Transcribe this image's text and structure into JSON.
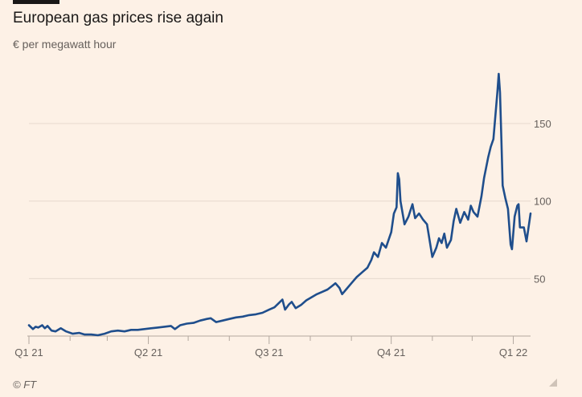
{
  "title": "European gas prices rise again",
  "subtitle": "€ per megawatt hour",
  "source": "© FT",
  "chart_data": {
    "type": "line",
    "title": "European gas prices rise again",
    "ylabel": "€ per megawatt hour",
    "xlabel": "",
    "ylim": [
      13,
      180
    ],
    "y_ticks": [
      50,
      100,
      150
    ],
    "x_ticks": [
      "Q1 21",
      "Q2 21",
      "Q3 21",
      "Q4 21",
      "Q1 22"
    ],
    "grid": true,
    "legend": "none",
    "series": [
      {
        "color": "#1f4e8c",
        "points": [
          [
            "2021-01-01",
            20
          ],
          [
            "2021-01-04",
            17.5
          ],
          [
            "2021-01-06",
            19
          ],
          [
            "2021-01-08",
            18.5
          ],
          [
            "2021-01-11",
            20
          ],
          [
            "2021-01-13",
            18
          ],
          [
            "2021-01-15",
            19.5
          ],
          [
            "2021-01-18",
            16.5
          ],
          [
            "2021-01-21",
            16
          ],
          [
            "2021-01-25",
            18
          ],
          [
            "2021-01-29",
            16
          ],
          [
            "2021-02-03",
            14.5
          ],
          [
            "2021-02-08",
            15
          ],
          [
            "2021-02-12",
            14
          ],
          [
            "2021-02-17",
            14
          ],
          [
            "2021-02-22",
            13.5
          ],
          [
            "2021-02-27",
            14.5
          ],
          [
            "2021-03-04",
            16
          ],
          [
            "2021-03-09",
            16.5
          ],
          [
            "2021-03-14",
            16
          ],
          [
            "2021-03-19",
            17
          ],
          [
            "2021-03-24",
            17
          ],
          [
            "2021-03-29",
            17.5
          ],
          [
            "2021-04-03",
            18
          ],
          [
            "2021-04-08",
            18.5
          ],
          [
            "2021-04-13",
            19
          ],
          [
            "2021-04-18",
            19.5
          ],
          [
            "2021-04-21",
            17.5
          ],
          [
            "2021-04-25",
            20
          ],
          [
            "2021-04-30",
            21
          ],
          [
            "2021-05-05",
            21.5
          ],
          [
            "2021-05-10",
            23
          ],
          [
            "2021-05-15",
            24
          ],
          [
            "2021-05-18",
            24.5
          ],
          [
            "2021-05-22",
            22
          ],
          [
            "2021-05-27",
            23
          ],
          [
            "2021-06-01",
            24
          ],
          [
            "2021-06-06",
            25
          ],
          [
            "2021-06-11",
            25.5
          ],
          [
            "2021-06-16",
            26.5
          ],
          [
            "2021-06-21",
            27
          ],
          [
            "2021-06-26",
            28
          ],
          [
            "2021-07-01",
            30
          ],
          [
            "2021-07-05",
            31.5
          ],
          [
            "2021-07-08",
            34
          ],
          [
            "2021-07-11",
            36.5
          ],
          [
            "2021-07-13",
            30
          ],
          [
            "2021-07-16",
            33.5
          ],
          [
            "2021-07-18",
            35
          ],
          [
            "2021-07-21",
            31
          ],
          [
            "2021-07-25",
            33
          ],
          [
            "2021-07-29",
            36
          ],
          [
            "2021-08-02",
            38
          ],
          [
            "2021-08-06",
            40
          ],
          [
            "2021-08-10",
            41.5
          ],
          [
            "2021-08-14",
            43
          ],
          [
            "2021-08-17",
            45
          ],
          [
            "2021-08-20",
            47
          ],
          [
            "2021-08-23",
            44
          ],
          [
            "2021-08-25",
            40
          ],
          [
            "2021-08-28",
            43
          ],
          [
            "2021-09-01",
            47
          ],
          [
            "2021-09-05",
            51
          ],
          [
            "2021-09-09",
            54
          ],
          [
            "2021-09-13",
            57
          ],
          [
            "2021-09-16",
            62
          ],
          [
            "2021-09-18",
            67
          ],
          [
            "2021-09-21",
            64
          ],
          [
            "2021-09-24",
            73
          ],
          [
            "2021-09-27",
            70
          ],
          [
            "2021-09-29",
            75
          ],
          [
            "2021-10-01",
            80
          ],
          [
            "2021-10-03",
            92
          ],
          [
            "2021-10-05",
            96
          ],
          [
            "2021-10-06",
            118
          ],
          [
            "2021-10-07",
            114
          ],
          [
            "2021-10-08",
            100
          ],
          [
            "2021-10-11",
            85
          ],
          [
            "2021-10-14",
            90
          ],
          [
            "2021-10-17",
            98
          ],
          [
            "2021-10-19",
            89
          ],
          [
            "2021-10-22",
            92
          ],
          [
            "2021-10-25",
            88
          ],
          [
            "2021-10-28",
            85
          ],
          [
            "2021-11-01",
            64
          ],
          [
            "2021-11-04",
            70
          ],
          [
            "2021-11-06",
            76
          ],
          [
            "2021-11-08",
            73
          ],
          [
            "2021-11-10",
            79
          ],
          [
            "2021-11-12",
            70
          ],
          [
            "2021-11-15",
            75
          ],
          [
            "2021-11-17",
            87
          ],
          [
            "2021-11-19",
            95
          ],
          [
            "2021-11-22",
            86
          ],
          [
            "2021-11-25",
            93
          ],
          [
            "2021-11-28",
            88
          ],
          [
            "2021-11-30",
            97
          ],
          [
            "2021-12-02",
            93
          ],
          [
            "2021-12-05",
            90
          ],
          [
            "2021-12-08",
            103
          ],
          [
            "2021-12-10",
            115
          ],
          [
            "2021-12-13",
            128
          ],
          [
            "2021-12-15",
            135
          ],
          [
            "2021-12-17",
            140
          ],
          [
            "2021-12-20",
            170
          ],
          [
            "2021-12-21",
            182
          ],
          [
            "2021-12-22",
            170
          ],
          [
            "2021-12-23",
            140
          ],
          [
            "2021-12-24",
            110
          ],
          [
            "2021-12-26",
            102
          ],
          [
            "2021-12-28",
            95
          ],
          [
            "2021-12-30",
            72
          ],
          [
            "2021-12-31",
            69
          ],
          [
            "2022-01-02",
            90
          ],
          [
            "2022-01-04",
            97
          ],
          [
            "2022-01-05",
            98
          ],
          [
            "2022-01-06",
            83
          ],
          [
            "2022-01-09",
            83
          ],
          [
            "2022-01-11",
            74
          ],
          [
            "2022-01-14",
            92
          ]
        ]
      }
    ]
  },
  "colors": {
    "background": "#fdf1e6",
    "line": "#1f4e8c",
    "grid": "#e6d9ce",
    "axis": "#b3a89f",
    "text": "#66605c"
  }
}
